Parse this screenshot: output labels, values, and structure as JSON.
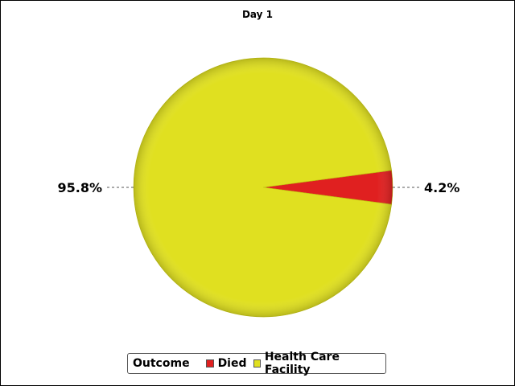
{
  "chart_data": {
    "type": "pie",
    "title": "Day 1",
    "legend_title": "Outcome",
    "legend_position": "bottom",
    "slices": [
      {
        "label": "Died",
        "value": 4.2,
        "display": "4.2%",
        "color": "#e02020"
      },
      {
        "label": "Health Care Facility",
        "value": 95.8,
        "display": "95.8%",
        "color": "#e0e020"
      }
    ]
  }
}
